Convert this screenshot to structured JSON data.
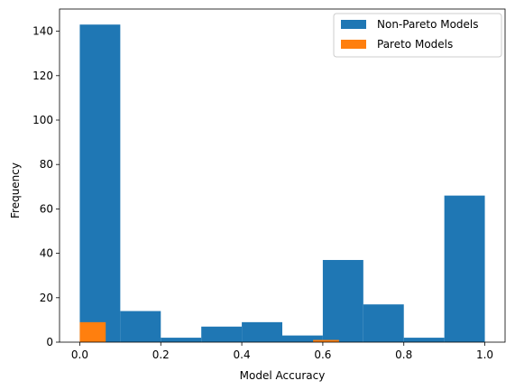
{
  "chart_data": {
    "type": "bar",
    "title": "",
    "xlabel": "Model Accuracy",
    "ylabel": "Frequency",
    "xlim": [
      -0.05,
      1.05
    ],
    "ylim": [
      0,
      150
    ],
    "xticks": [
      "0.0",
      "0.2",
      "0.4",
      "0.6",
      "0.8",
      "1.0"
    ],
    "yticks": [
      "0",
      "20",
      "40",
      "60",
      "80",
      "100",
      "120",
      "140"
    ],
    "grid": false,
    "legend_position": "top-right",
    "series": [
      {
        "name": "Non-Pareto Models",
        "color": "#1f77b4",
        "bins": [
          {
            "x0": 0.0,
            "x1": 0.1,
            "value": 143
          },
          {
            "x0": 0.1,
            "x1": 0.2,
            "value": 14
          },
          {
            "x0": 0.2,
            "x1": 0.3,
            "value": 2
          },
          {
            "x0": 0.3,
            "x1": 0.4,
            "value": 7
          },
          {
            "x0": 0.4,
            "x1": 0.5,
            "value": 9
          },
          {
            "x0": 0.5,
            "x1": 0.6,
            "value": 3
          },
          {
            "x0": 0.6,
            "x1": 0.7,
            "value": 37
          },
          {
            "x0": 0.7,
            "x1": 0.8,
            "value": 17
          },
          {
            "x0": 0.8,
            "x1": 0.9,
            "value": 2
          },
          {
            "x0": 0.9,
            "x1": 1.0,
            "value": 66
          }
        ]
      },
      {
        "name": "Pareto Models",
        "color": "#ff7f0e",
        "bins": [
          {
            "x0": 0.0,
            "x1": 0.064,
            "value": 9
          },
          {
            "x0": 0.576,
            "x1": 0.64,
            "value": 1
          }
        ]
      }
    ]
  }
}
